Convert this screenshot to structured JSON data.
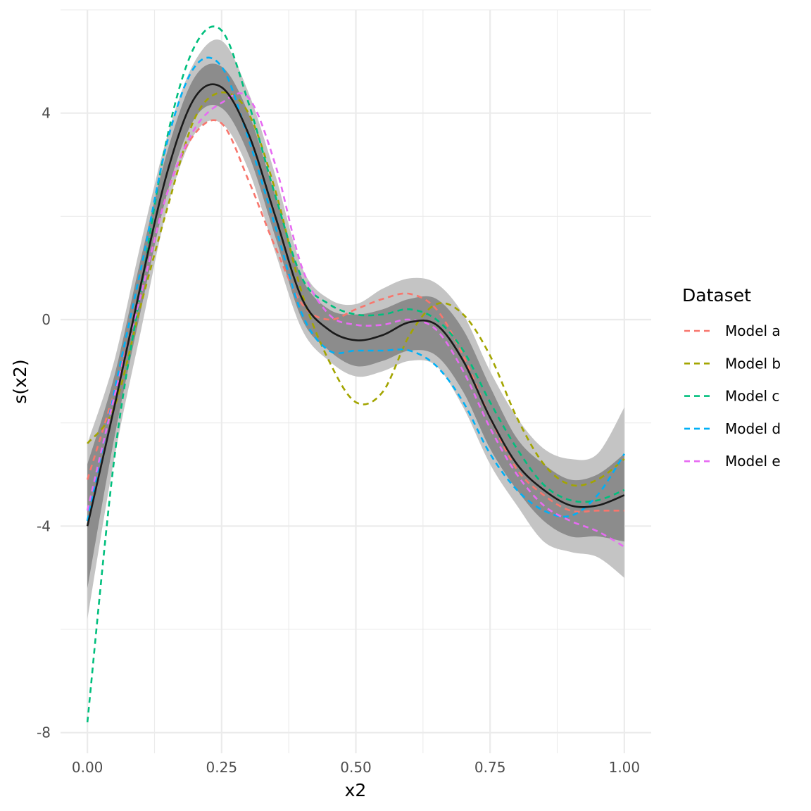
{
  "chart_data": {
    "type": "line",
    "xlabel": "x2",
    "ylabel": "s(x2)",
    "xlim": [
      -0.05,
      1.05
    ],
    "ylim": [
      -8.4,
      6.0
    ],
    "x_ticks": [
      {
        "value": 0.0,
        "label": "0.00"
      },
      {
        "value": 0.25,
        "label": "0.25"
      },
      {
        "value": 0.5,
        "label": "0.50"
      },
      {
        "value": 0.75,
        "label": "0.75"
      },
      {
        "value": 1.0,
        "label": "1.00"
      }
    ],
    "x_minor_ticks": [
      0.125,
      0.375,
      0.625,
      0.875
    ],
    "y_ticks": [
      {
        "value": -8,
        "label": "-8"
      },
      {
        "value": -4,
        "label": "-4"
      },
      {
        "value": 0,
        "label": "0"
      },
      {
        "value": 4,
        "label": "4"
      }
    ],
    "y_minor_ticks": [
      -6,
      -2,
      2,
      6
    ],
    "grid": true,
    "legend": {
      "title": "Dataset",
      "placement": "right",
      "entries": [
        "Model a",
        "Model b",
        "Model c",
        "Model d",
        "Model e"
      ]
    },
    "x": [
      0.0,
      0.05,
      0.1,
      0.15,
      0.2,
      0.25,
      0.3,
      0.35,
      0.4,
      0.45,
      0.5,
      0.55,
      0.6,
      0.65,
      0.7,
      0.75,
      0.8,
      0.85,
      0.9,
      0.95,
      1.0
    ],
    "estimate": {
      "color": "#1a1a1a",
      "values": [
        -4.0,
        -1.7,
        0.7,
        2.9,
        4.3,
        4.5,
        3.6,
        2.0,
        0.4,
        -0.2,
        -0.4,
        -0.3,
        -0.05,
        -0.1,
        -0.8,
        -1.9,
        -2.8,
        -3.3,
        -3.6,
        -3.6,
        -3.4
      ]
    },
    "band_inner": {
      "color": "#8c8c8c",
      "lower": [
        -5.2,
        -2.3,
        0.2,
        2.5,
        3.9,
        4.1,
        3.2,
        1.6,
        0.0,
        -0.6,
        -0.9,
        -0.8,
        -0.6,
        -0.7,
        -1.4,
        -2.5,
        -3.3,
        -3.9,
        -4.2,
        -4.2,
        -4.3
      ],
      "upper": [
        -2.8,
        -1.1,
        1.2,
        3.3,
        4.7,
        4.9,
        4.0,
        2.4,
        0.8,
        0.2,
        0.1,
        0.2,
        0.4,
        0.4,
        -0.2,
        -1.3,
        -2.3,
        -2.8,
        -3.1,
        -3.0,
        -2.6
      ]
    },
    "band_outer": {
      "color": "#c4c4c4",
      "lower": [
        -5.8,
        -2.7,
        -0.2,
        2.2,
        3.6,
        3.8,
        2.9,
        1.3,
        -0.2,
        -0.8,
        -1.1,
        -1.0,
        -0.8,
        -0.9,
        -1.7,
        -2.8,
        -3.6,
        -4.3,
        -4.5,
        -4.6,
        -5.0
      ],
      "upper": [
        -2.4,
        -0.8,
        1.5,
        3.6,
        5.0,
        5.4,
        4.4,
        2.8,
        1.0,
        0.4,
        0.3,
        0.6,
        0.8,
        0.7,
        0.1,
        -1.0,
        -1.9,
        -2.5,
        -2.7,
        -2.6,
        -1.7
      ]
    },
    "series": [
      {
        "name": "Model a",
        "color": "#F8766D",
        "values": [
          -3.1,
          -1.4,
          0.5,
          2.5,
          3.6,
          3.8,
          2.7,
          1.4,
          0.3,
          0.0,
          0.2,
          0.4,
          0.5,
          0.2,
          -0.7,
          -1.9,
          -2.9,
          -3.4,
          -3.7,
          -3.7,
          -3.7
        ]
      },
      {
        "name": "Model b",
        "color": "#A3A500",
        "values": [
          -2.4,
          -1.7,
          0.3,
          2.2,
          3.9,
          4.4,
          4.0,
          2.5,
          0.5,
          -0.8,
          -1.6,
          -1.4,
          -0.3,
          0.3,
          0.1,
          -0.7,
          -1.9,
          -2.8,
          -3.2,
          -3.1,
          -2.7
        ]
      },
      {
        "name": "Model c",
        "color": "#00BF7D",
        "values": [
          -7.8,
          -2.7,
          0.6,
          3.6,
          5.3,
          5.6,
          4.2,
          2.4,
          0.8,
          0.3,
          0.1,
          0.1,
          0.2,
          0.0,
          -0.6,
          -1.6,
          -2.5,
          -3.2,
          -3.5,
          -3.5,
          -3.3
        ]
      },
      {
        "name": "Model d",
        "color": "#00B0F6",
        "values": [
          -3.9,
          -1.4,
          1.0,
          3.5,
          4.9,
          4.9,
          3.5,
          1.8,
          0.1,
          -0.6,
          -0.6,
          -0.6,
          -0.6,
          -0.9,
          -1.6,
          -2.6,
          -3.3,
          -3.7,
          -3.8,
          -3.4,
          -2.6
        ]
      },
      {
        "name": "Model e",
        "color": "#E76BF3",
        "values": [
          -3.7,
          -1.5,
          0.5,
          2.5,
          3.7,
          4.2,
          4.3,
          3.0,
          1.0,
          0.1,
          -0.1,
          -0.1,
          0.0,
          -0.2,
          -1.0,
          -2.1,
          -3.0,
          -3.6,
          -3.9,
          -4.1,
          -4.4
        ]
      }
    ]
  }
}
